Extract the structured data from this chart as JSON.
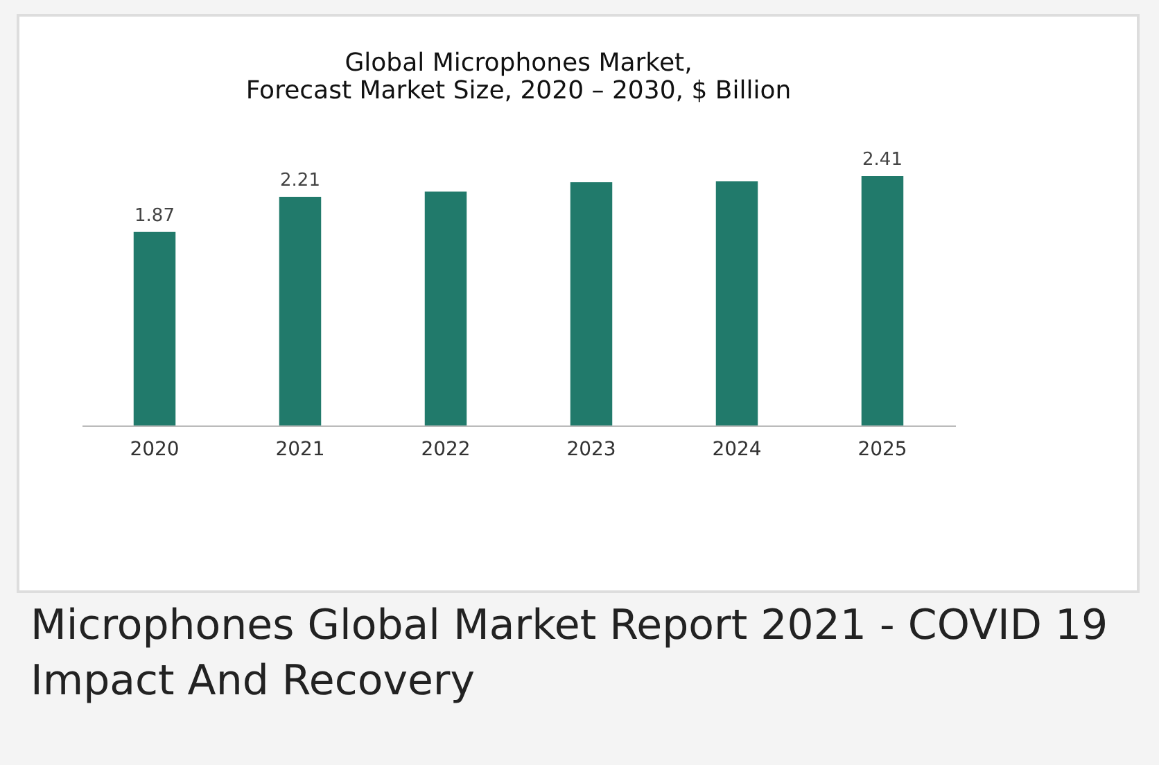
{
  "chart_data": {
    "type": "bar",
    "title": [
      "Global Microphones Market,",
      "Forecast Market Size, 2020 – 2030, $ Billion"
    ],
    "categories": [
      "2020",
      "2021",
      "2022",
      "2023",
      "2024",
      "2025"
    ],
    "values": [
      1.87,
      2.21,
      2.26,
      2.35,
      2.36,
      2.41
    ],
    "value_labels": [
      "1.87",
      "2.21",
      null,
      null,
      null,
      "2.41"
    ],
    "color": "#217a6b",
    "annotations": [
      "Microphones Global Market Report 2021 - COVID 19 Impact And Recovery"
    ]
  }
}
